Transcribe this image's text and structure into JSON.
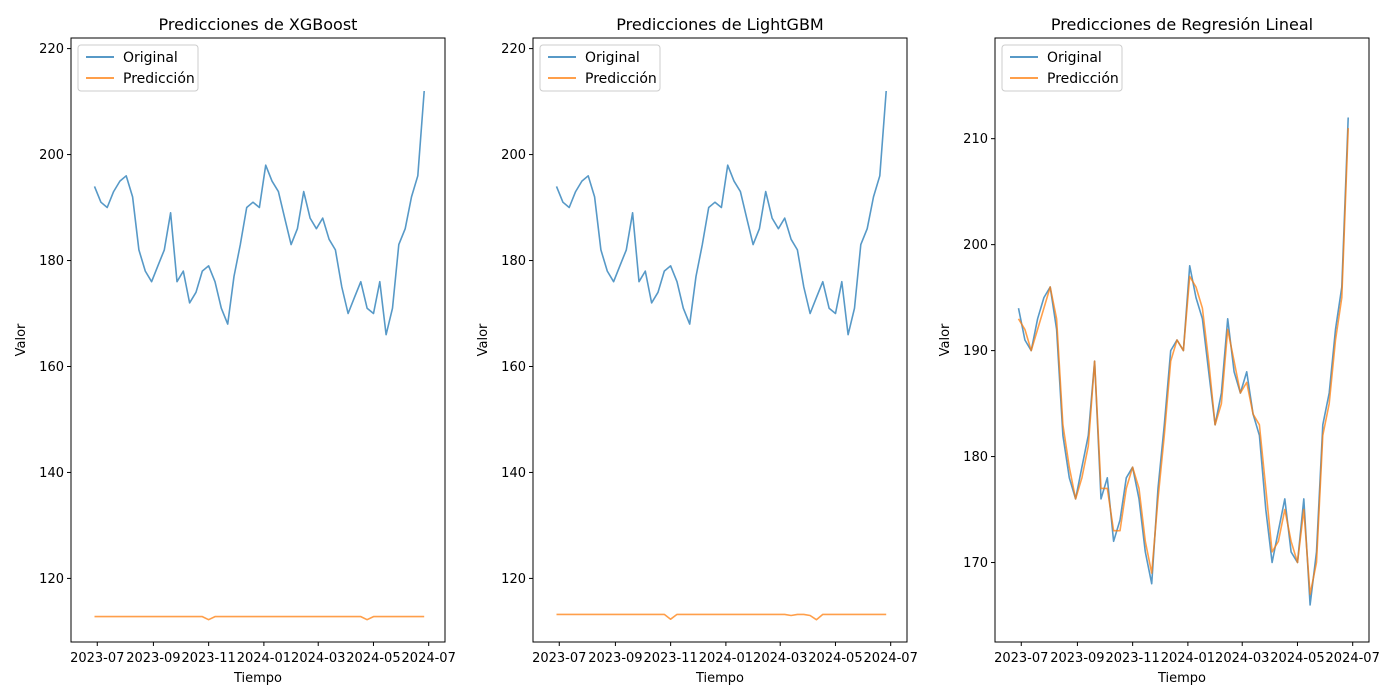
{
  "colors": {
    "original": "#1f77b4",
    "prediction": "#ff7f0e"
  },
  "chart_data": [
    {
      "type": "line",
      "title": "Predicciones de XGBoost",
      "xlabel": "Tiempo",
      "ylabel": "Valor",
      "ylim": [
        108,
        222
      ],
      "yticks": [
        120,
        140,
        160,
        180,
        200,
        220
      ],
      "xticks": [
        "2023-07",
        "2023-09",
        "2023-11",
        "2024-01",
        "2024-03",
        "2024-05",
        "2024-07"
      ],
      "legend_position": "upper-left",
      "series": [
        {
          "name": "Original",
          "source": "original"
        },
        {
          "name": "Predicción",
          "source": "pred_xgb"
        }
      ]
    },
    {
      "type": "line",
      "title": "Predicciones de LightGBM",
      "xlabel": "Tiempo",
      "ylabel": "Valor",
      "ylim": [
        108,
        222
      ],
      "yticks": [
        120,
        140,
        160,
        180,
        200,
        220
      ],
      "xticks": [
        "2023-07",
        "2023-09",
        "2023-11",
        "2024-01",
        "2024-03",
        "2024-05",
        "2024-07"
      ],
      "legend_position": "upper-left",
      "series": [
        {
          "name": "Original",
          "source": "original"
        },
        {
          "name": "Predicción",
          "source": "pred_lgbm"
        }
      ]
    },
    {
      "type": "line",
      "title": "Predicciones de Regresión Lineal",
      "xlabel": "Tiempo",
      "ylabel": "Valor",
      "ylim": [
        162.5,
        219.5
      ],
      "yticks": [
        170,
        180,
        190,
        200,
        210
      ],
      "xticks": [
        "2023-07",
        "2023-09",
        "2023-11",
        "2024-01",
        "2024-03",
        "2024-05",
        "2024-07"
      ],
      "legend_position": "upper-left",
      "series": [
        {
          "name": "Original",
          "source": "original"
        },
        {
          "name": "Predicción",
          "source": "pred_lr"
        }
      ]
    }
  ],
  "series_data": {
    "x_range": [
      "2023-06-02",
      "2024-07-19"
    ],
    "x": [
      "2023-06-28",
      "2023-07-05",
      "2023-07-12",
      "2023-07-19",
      "2023-07-26",
      "2023-08-02",
      "2023-08-09",
      "2023-08-16",
      "2023-08-23",
      "2023-08-30",
      "2023-09-06",
      "2023-09-13",
      "2023-09-20",
      "2023-09-27",
      "2023-10-04",
      "2023-10-11",
      "2023-10-18",
      "2023-10-25",
      "2023-11-01",
      "2023-11-08",
      "2023-11-15",
      "2023-11-22",
      "2023-11-29",
      "2023-12-06",
      "2023-12-13",
      "2023-12-20",
      "2023-12-27",
      "2024-01-03",
      "2024-01-10",
      "2024-01-17",
      "2024-01-24",
      "2024-01-31",
      "2024-02-07",
      "2024-02-14",
      "2024-02-21",
      "2024-02-28",
      "2024-03-06",
      "2024-03-13",
      "2024-03-20",
      "2024-03-27",
      "2024-04-03",
      "2024-04-10",
      "2024-04-17",
      "2024-04-24",
      "2024-05-01",
      "2024-05-08",
      "2024-05-15",
      "2024-05-22",
      "2024-05-29",
      "2024-06-05",
      "2024-06-12",
      "2024-06-19",
      "2024-06-26"
    ],
    "original": [
      194,
      191,
      190,
      193,
      195,
      196,
      192,
      182,
      178,
      176,
      179,
      182,
      189,
      176,
      178,
      172,
      174,
      178,
      179,
      176,
      171,
      168,
      177,
      183,
      190,
      191,
      190,
      198,
      195,
      193,
      188,
      183,
      186,
      193,
      188,
      186,
      188,
      184,
      182,
      175,
      170,
      173,
      176,
      171,
      170,
      176,
      166,
      171,
      183,
      186,
      192,
      196,
      212
    ],
    "pred_xgb": [
      112.8,
      112.8,
      112.8,
      112.8,
      112.8,
      112.8,
      112.8,
      112.8,
      112.8,
      112.8,
      112.8,
      112.8,
      112.8,
      112.8,
      112.8,
      112.8,
      112.8,
      112.8,
      112.2,
      112.8,
      112.8,
      112.8,
      112.8,
      112.8,
      112.8,
      112.8,
      112.8,
      112.8,
      112.8,
      112.8,
      112.8,
      112.8,
      112.8,
      112.8,
      112.8,
      112.8,
      112.8,
      112.8,
      112.8,
      112.8,
      112.8,
      112.8,
      112.8,
      112.2,
      112.8,
      112.8,
      112.8,
      112.8,
      112.8,
      112.8,
      112.8,
      112.8,
      112.8
    ],
    "pred_lgbm": [
      113.2,
      113.2,
      113.2,
      113.2,
      113.2,
      113.2,
      113.2,
      113.2,
      113.2,
      113.2,
      113.2,
      113.2,
      113.2,
      113.2,
      113.2,
      113.2,
      113.2,
      113.2,
      112.3,
      113.2,
      113.2,
      113.2,
      113.2,
      113.2,
      113.2,
      113.2,
      113.2,
      113.2,
      113.2,
      113.2,
      113.2,
      113.2,
      113.2,
      113.2,
      113.2,
      113.2,
      113.2,
      113.0,
      113.2,
      113.2,
      113.0,
      112.2,
      113.2,
      113.2,
      113.2,
      113.2,
      113.2,
      113.2,
      113.2,
      113.2,
      113.2,
      113.2,
      113.2
    ],
    "pred_lr": [
      193,
      192,
      190,
      192,
      194,
      196,
      193,
      183,
      179,
      176,
      178,
      181,
      189,
      177,
      177,
      173,
      173,
      177,
      179,
      177,
      172,
      169,
      176,
      182,
      189,
      191,
      190,
      197,
      196,
      194,
      189,
      183,
      185,
      192,
      189,
      186,
      187,
      184,
      183,
      177,
      171,
      172,
      175,
      172,
      170,
      175,
      167,
      170,
      182,
      185,
      191,
      195,
      211
    ]
  }
}
